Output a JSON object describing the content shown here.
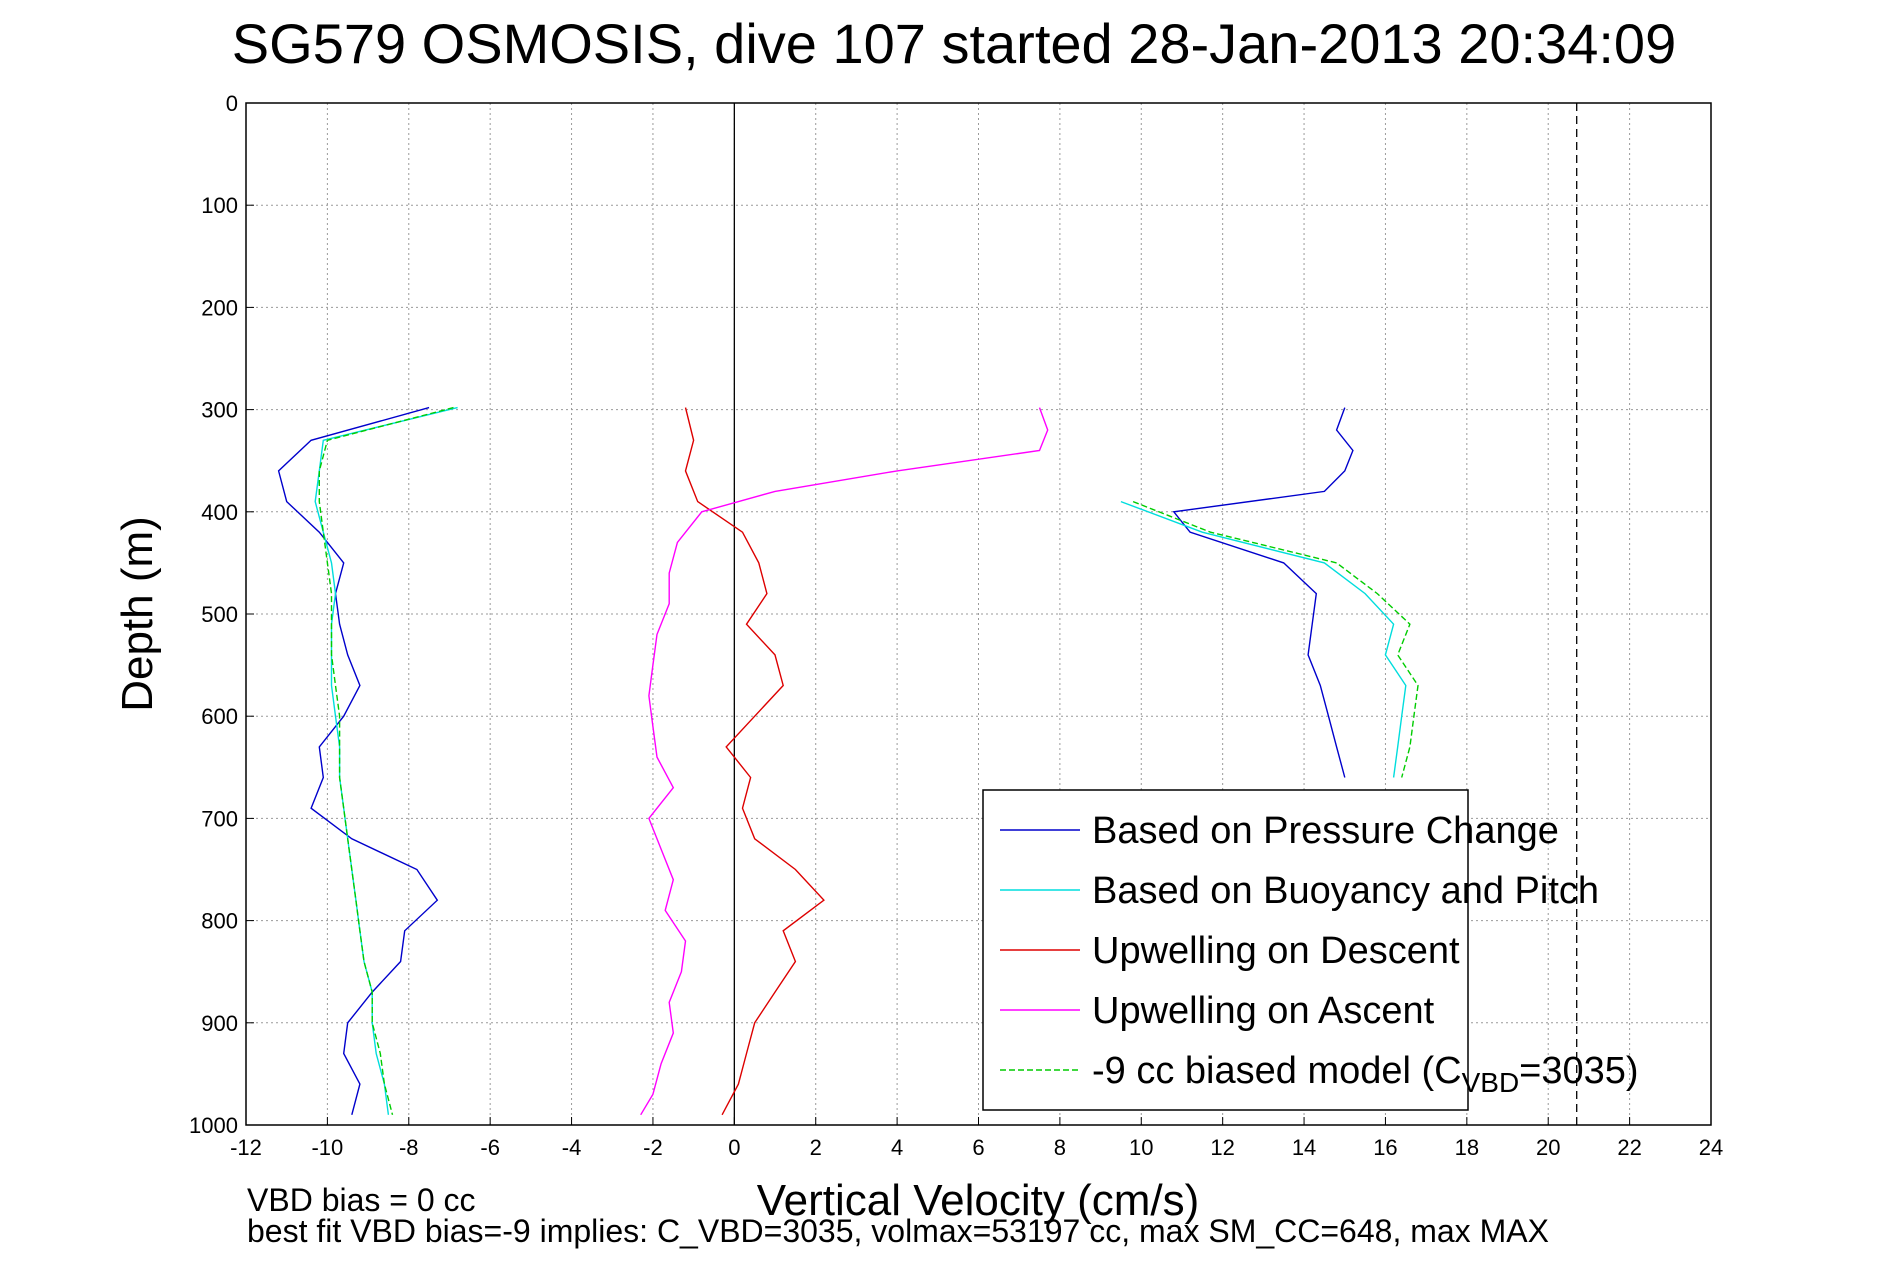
{
  "chart_data": {
    "type": "line",
    "title": "SG579 OSMOSIS, dive 107 started 28-Jan-2013 20:34:09",
    "xlabel": "Vertical Velocity (cm/s)",
    "ylabel": "Depth (m)",
    "xlim": [
      -12,
      24
    ],
    "ylim": [
      0,
      1000
    ],
    "y_reversed": true,
    "grid": true,
    "xticks": [
      -12,
      -10,
      -8,
      -6,
      -4,
      -2,
      0,
      2,
      4,
      6,
      8,
      10,
      12,
      14,
      16,
      18,
      20,
      22,
      24
    ],
    "yticks": [
      0,
      100,
      200,
      300,
      400,
      500,
      600,
      700,
      800,
      900,
      1000
    ],
    "reference_lines": [
      {
        "x": 0,
        "style": "solid",
        "color": "#000000"
      },
      {
        "x": 20.7,
        "style": "dashed",
        "color": "#000000"
      }
    ],
    "legend_position": "bottom-right",
    "series": [
      {
        "name": "Based on Pressure Change",
        "color": "#0000cc",
        "style": "solid",
        "branches": [
          {
            "depth": [
              298,
              330,
              360,
              390,
              420,
              450,
              480,
              510,
              540,
              570,
              600,
              630,
              660,
              690,
              720,
              750,
              780,
              810,
              840,
              870,
              900,
              930,
              960,
              990
            ],
            "x": [
              -7.5,
              -10.4,
              -11.2,
              -11.0,
              -10.2,
              -9.6,
              -9.8,
              -9.7,
              -9.5,
              -9.2,
              -9.6,
              -10.2,
              -10.1,
              -10.4,
              -9.4,
              -7.8,
              -7.3,
              -8.1,
              -8.2,
              -8.9,
              -9.5,
              -9.6,
              -9.2,
              -9.4
            ]
          },
          {
            "depth": [
              298,
              320,
              340,
              360,
              380,
              400,
              420,
              450,
              480,
              510,
              540,
              570,
              600,
              630,
              660
            ],
            "x": [
              15.0,
              14.8,
              15.2,
              15.0,
              14.5,
              10.8,
              11.2,
              13.5,
              14.3,
              14.2,
              14.1,
              14.4,
              14.6,
              14.8,
              15.0
            ]
          }
        ]
      },
      {
        "name": "Based on Buoyancy and Pitch",
        "color": "#00dddd",
        "style": "solid",
        "branches": [
          {
            "depth": [
              298,
              330,
              360,
              390,
              420,
              450,
              480,
              510,
              540,
              570,
              600,
              630,
              660,
              690,
              720,
              750,
              780,
              810,
              840,
              870,
              900,
              930,
              960,
              990
            ],
            "x": [
              -6.8,
              -10.1,
              -10.2,
              -10.3,
              -10.1,
              -9.9,
              -9.8,
              -9.9,
              -9.9,
              -9.9,
              -9.8,
              -9.7,
              -9.7,
              -9.6,
              -9.5,
              -9.4,
              -9.3,
              -9.2,
              -9.1,
              -8.9,
              -8.9,
              -8.8,
              -8.6,
              -8.5
            ]
          },
          {
            "depth": [
              390,
              420,
              450,
              480,
              510,
              540,
              570,
              600,
              630,
              660
            ],
            "x": [
              9.5,
              11.5,
              14.5,
              15.5,
              16.2,
              16.0,
              16.5,
              16.4,
              16.3,
              16.2
            ]
          }
        ]
      },
      {
        "name": "Upwelling on Descent",
        "color": "#dd0000",
        "style": "solid",
        "branches": [
          {
            "depth": [
              298,
              330,
              360,
              390,
              420,
              450,
              480,
              510,
              540,
              570,
              600,
              630,
              660,
              690,
              720,
              750,
              780,
              810,
              840,
              870,
              900,
              930,
              960,
              990
            ],
            "x": [
              -1.2,
              -1.0,
              -1.2,
              -0.9,
              0.2,
              0.6,
              0.8,
              0.3,
              1.0,
              1.2,
              0.5,
              -0.2,
              0.4,
              0.2,
              0.5,
              1.5,
              2.2,
              1.2,
              1.5,
              1.0,
              0.5,
              0.3,
              0.1,
              -0.3
            ]
          }
        ]
      },
      {
        "name": "Upwelling on Ascent",
        "color": "#ff00ff",
        "style": "solid",
        "branches": [
          {
            "depth": [
              298,
              320,
              340,
              360,
              380,
              400,
              430,
              460,
              490,
              520,
              550,
              580,
              610,
              640,
              670,
              700,
              730,
              760,
              790,
              820,
              850,
              880,
              910,
              940,
              970,
              990
            ],
            "x": [
              7.5,
              7.7,
              7.5,
              4.0,
              1.0,
              -0.8,
              -1.4,
              -1.6,
              -1.6,
              -1.9,
              -2.0,
              -2.1,
              -2.0,
              -1.9,
              -1.5,
              -2.1,
              -1.8,
              -1.5,
              -1.7,
              -1.2,
              -1.3,
              -1.6,
              -1.5,
              -1.8,
              -2.0,
              -2.3
            ]
          }
        ]
      },
      {
        "name": "-9 cc biased model (C_VBD=3035)",
        "color": "#00cc00",
        "style": "dashed",
        "branches": [
          {
            "depth": [
              298,
              330,
              360,
              390,
              420,
              450,
              480,
              510,
              540,
              570,
              600,
              630,
              660,
              690,
              720,
              750,
              780,
              810,
              840,
              870,
              900,
              930,
              960,
              990
            ],
            "x": [
              -6.9,
              -10.0,
              -10.2,
              -10.2,
              -10.1,
              -10.0,
              -9.9,
              -9.9,
              -9.9,
              -9.8,
              -9.7,
              -9.7,
              -9.7,
              -9.6,
              -9.5,
              -9.4,
              -9.3,
              -9.2,
              -9.1,
              -8.9,
              -8.9,
              -8.7,
              -8.6,
              -8.4
            ]
          },
          {
            "depth": [
              390,
              420,
              450,
              480,
              510,
              540,
              570,
              600,
              630,
              660
            ],
            "x": [
              9.8,
              11.7,
              14.8,
              15.8,
              16.6,
              16.3,
              16.8,
              16.7,
              16.6,
              16.4
            ]
          }
        ]
      }
    ],
    "legend": [
      {
        "label": "Based on Pressure Change",
        "color": "#0000cc",
        "style": "solid"
      },
      {
        "label": "Based on Buoyancy and Pitch",
        "color": "#00dddd",
        "style": "solid"
      },
      {
        "label": "Upwelling on Descent",
        "color": "#dd0000",
        "style": "solid"
      },
      {
        "label": "Upwelling on Ascent",
        "color": "#ff00ff",
        "style": "solid"
      },
      {
        "label": "-9 cc biased model (C",
        "sub": "VBD",
        "suffix": "=3035)",
        "color": "#00cc00",
        "style": "dashed"
      }
    ],
    "annotations": [
      "VBD bias = 0 cc",
      "best fit VBD bias=-9 implies: C_VBD=3035, volmax=53197 cc, max SM_CC=648, max MAX"
    ]
  }
}
